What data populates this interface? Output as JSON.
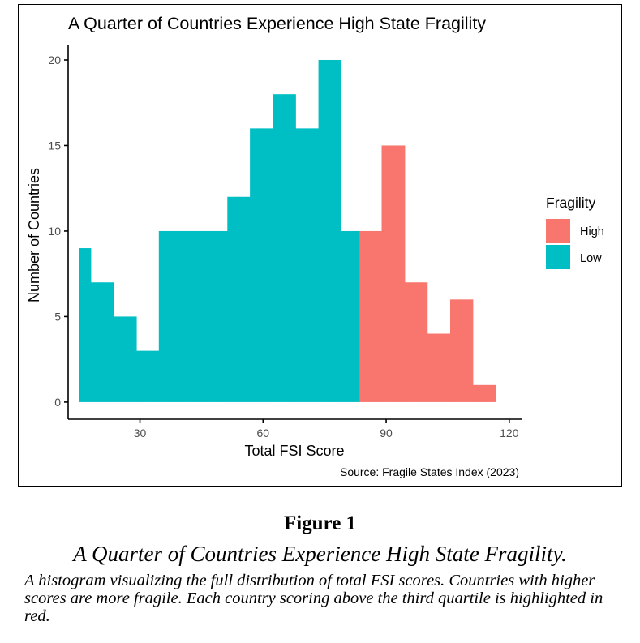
{
  "chart_data": {
    "type": "bar",
    "title": "A Quarter of Countries Experience High State Fragility",
    "xlabel": "Total FSI Score",
    "ylabel": "Number of Countries",
    "source": "Source: Fragile States Index (2023)",
    "xlim": [
      12.5,
      123
    ],
    "ylim": [
      -1,
      20.9
    ],
    "xticks": [
      30,
      60,
      90,
      120
    ],
    "yticks": [
      0,
      5,
      10,
      15,
      20
    ],
    "grid": false,
    "legend": {
      "title": "Fragility",
      "position": "right"
    },
    "series": [
      {
        "name": "High",
        "color": "#F8766D",
        "bins": [
          {
            "x0": 83.4,
            "x1": 86.2,
            "count": 10
          },
          {
            "x0": 86.2,
            "x1": 88.9,
            "count": 10
          },
          {
            "x0": 88.9,
            "x1": 91.7,
            "count": 15
          },
          {
            "x0": 91.7,
            "x1": 94.5,
            "count": 15
          },
          {
            "x0": 94.5,
            "x1": 97.3,
            "count": 7
          },
          {
            "x0": 97.3,
            "x1": 100.0,
            "count": 7
          },
          {
            "x0": 100.0,
            "x1": 102.8,
            "count": 4
          },
          {
            "x0": 102.8,
            "x1": 105.6,
            "count": 4
          },
          {
            "x0": 105.6,
            "x1": 108.4,
            "count": 6
          },
          {
            "x0": 108.4,
            "x1": 111.1,
            "count": 6
          },
          {
            "x0": 111.1,
            "x1": 113.9,
            "count": 1
          },
          {
            "x0": 113.9,
            "x1": 116.7,
            "count": 1
          }
        ]
      },
      {
        "name": "Low",
        "color": "#00BFC4",
        "bins": [
          {
            "x0": 15.2,
            "x1": 18.0,
            "count": 9
          },
          {
            "x0": 18.0,
            "x1": 20.8,
            "count": 7
          },
          {
            "x0": 20.8,
            "x1": 23.5,
            "count": 7
          },
          {
            "x0": 23.5,
            "x1": 26.3,
            "count": 5
          },
          {
            "x0": 26.3,
            "x1": 29.1,
            "count": 5
          },
          {
            "x0": 29.1,
            "x1": 31.9,
            "count": 3
          },
          {
            "x0": 31.9,
            "x1": 34.6,
            "count": 3
          },
          {
            "x0": 34.6,
            "x1": 37.4,
            "count": 10
          },
          {
            "x0": 37.4,
            "x1": 40.2,
            "count": 10
          },
          {
            "x0": 40.2,
            "x1": 43.0,
            "count": 10
          },
          {
            "x0": 43.0,
            "x1": 45.7,
            "count": 10
          },
          {
            "x0": 45.7,
            "x1": 48.5,
            "count": 10
          },
          {
            "x0": 48.5,
            "x1": 51.3,
            "count": 10
          },
          {
            "x0": 51.3,
            "x1": 54.1,
            "count": 12
          },
          {
            "x0": 54.1,
            "x1": 56.8,
            "count": 12
          },
          {
            "x0": 56.8,
            "x1": 59.6,
            "count": 16
          },
          {
            "x0": 59.6,
            "x1": 62.4,
            "count": 16
          },
          {
            "x0": 62.4,
            "x1": 65.2,
            "count": 18
          },
          {
            "x0": 65.2,
            "x1": 67.9,
            "count": 18
          },
          {
            "x0": 67.9,
            "x1": 70.7,
            "count": 16
          },
          {
            "x0": 70.7,
            "x1": 73.5,
            "count": 16
          },
          {
            "x0": 73.5,
            "x1": 76.3,
            "count": 20
          },
          {
            "x0": 76.3,
            "x1": 79.0,
            "count": 20
          },
          {
            "x0": 79.0,
            "x1": 81.8,
            "count": 10
          },
          {
            "x0": 81.8,
            "x1": 83.4,
            "count": 10
          }
        ]
      }
    ]
  },
  "figure": {
    "label": "Figure 1",
    "title": "A Quarter of Countries Experience High State Fragility.",
    "caption": "A histogram visualizing the full distribution of total FSI scores. Countries with higher scores are more fragile. Each country scoring above the third quartile is highlighted in red."
  }
}
